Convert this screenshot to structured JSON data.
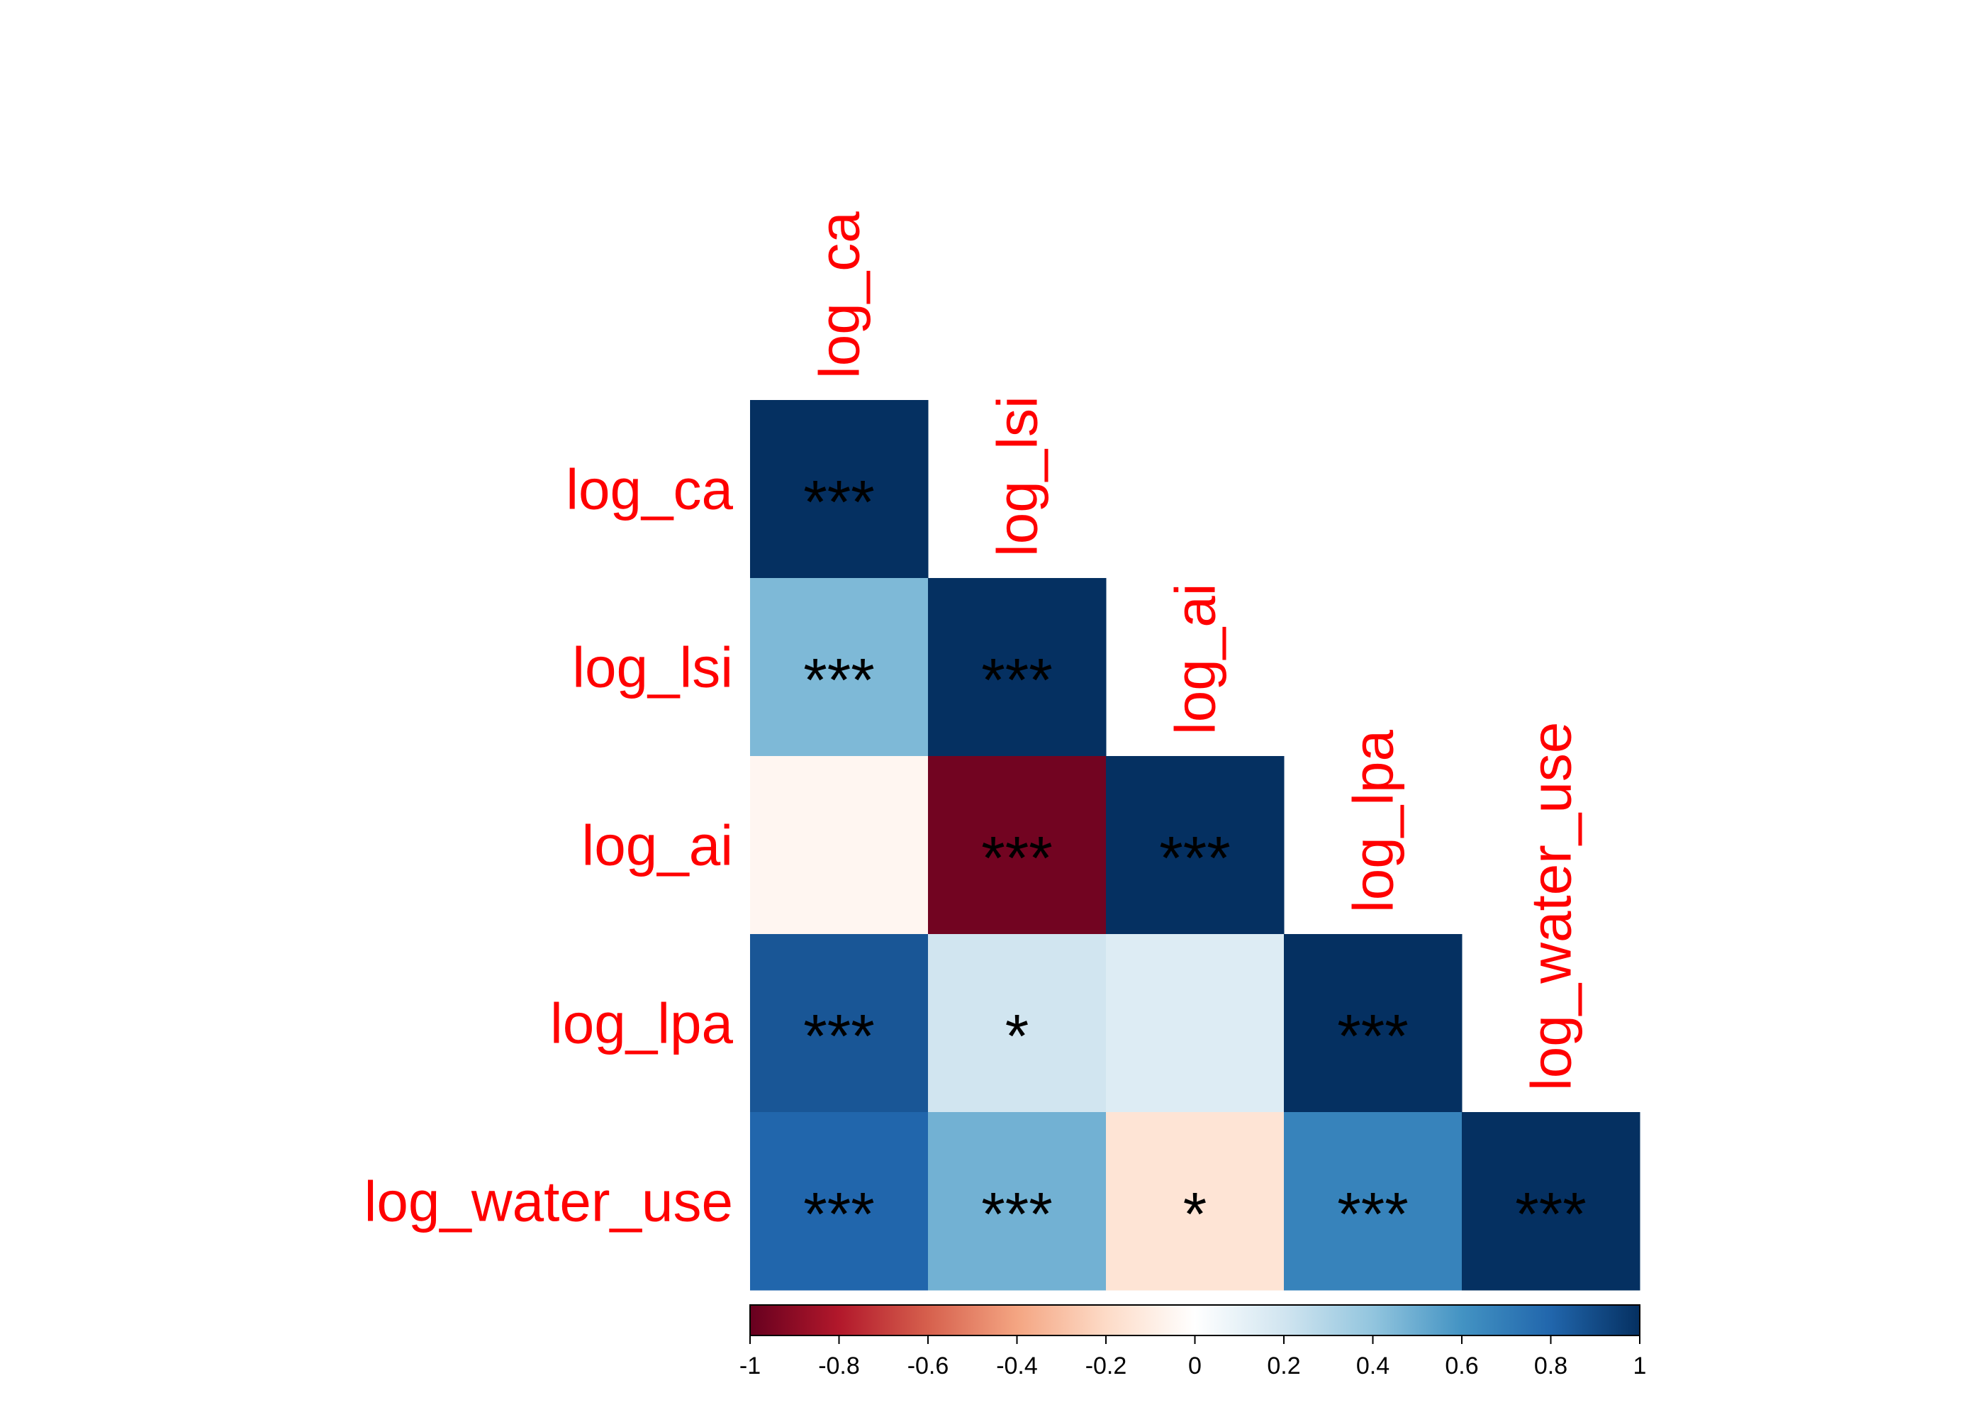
{
  "chart_data": {
    "type": "heatmap",
    "variables": [
      "log_ca",
      "log_lsi",
      "log_ai",
      "log_lpa",
      "log_water_use"
    ],
    "layout": "lower-triangle",
    "cells": [
      {
        "row": "log_ca",
        "col": "log_ca",
        "value": 1.0,
        "sig": "***"
      },
      {
        "row": "log_lsi",
        "col": "log_ca",
        "value": 0.45,
        "sig": "***"
      },
      {
        "row": "log_lsi",
        "col": "log_lsi",
        "value": 1.0,
        "sig": "***"
      },
      {
        "row": "log_ai",
        "col": "log_ca",
        "value": -0.05,
        "sig": ""
      },
      {
        "row": "log_ai",
        "col": "log_lsi",
        "value": -0.97,
        "sig": "***"
      },
      {
        "row": "log_ai",
        "col": "log_ai",
        "value": 1.0,
        "sig": "***"
      },
      {
        "row": "log_lpa",
        "col": "log_ca",
        "value": 0.86,
        "sig": "***"
      },
      {
        "row": "log_lpa",
        "col": "log_lsi",
        "value": 0.2,
        "sig": "*"
      },
      {
        "row": "log_lpa",
        "col": "log_ai",
        "value": 0.15,
        "sig": ""
      },
      {
        "row": "log_lpa",
        "col": "log_lpa",
        "value": 1.0,
        "sig": "***"
      },
      {
        "row": "log_water_use",
        "col": "log_ca",
        "value": 0.8,
        "sig": "***"
      },
      {
        "row": "log_water_use",
        "col": "log_lsi",
        "value": 0.48,
        "sig": "***"
      },
      {
        "row": "log_water_use",
        "col": "log_ai",
        "value": -0.15,
        "sig": "*"
      },
      {
        "row": "log_water_use",
        "col": "log_lpa",
        "value": 0.67,
        "sig": "***"
      },
      {
        "row": "log_water_use",
        "col": "log_water_use",
        "value": 1.0,
        "sig": "***"
      }
    ],
    "colorbar": {
      "range": [
        -1,
        1
      ],
      "ticks": [
        "-1",
        "-0.8",
        "-0.6",
        "-0.4",
        "-0.2",
        "0",
        "0.2",
        "0.4",
        "0.6",
        "0.8",
        "1"
      ],
      "colors": [
        "#67001F",
        "#B2182B",
        "#D6604D",
        "#F4A582",
        "#FDDBC7",
        "#FFFFFF",
        "#D1E5F0",
        "#92C5DE",
        "#4393C3",
        "#2166AC",
        "#053061"
      ]
    },
    "label_color": "#ff0000"
  }
}
